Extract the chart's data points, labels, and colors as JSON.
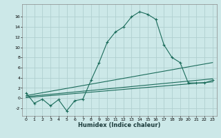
{
  "xlabel": "Humidex (Indice chaleur)",
  "bg_color": "#cce8e8",
  "grid_color": "#b0d0d0",
  "line_color": "#1a6b5a",
  "xlim": [
    -0.5,
    23.5
  ],
  "ylim": [
    -3.5,
    18.5
  ],
  "yticks": [
    -2,
    0,
    2,
    4,
    6,
    8,
    10,
    12,
    14,
    16
  ],
  "xticks": [
    0,
    1,
    2,
    3,
    4,
    5,
    6,
    7,
    8,
    9,
    10,
    11,
    12,
    13,
    14,
    15,
    16,
    17,
    18,
    19,
    20,
    21,
    22,
    23
  ],
  "series1_x": [
    0,
    1,
    2,
    3,
    4,
    5,
    6,
    7,
    8,
    9,
    10,
    11,
    12,
    13,
    14,
    15,
    16,
    17,
    18,
    19,
    20,
    21,
    22,
    23
  ],
  "series1_y": [
    1.0,
    -1.0,
    -0.2,
    -1.5,
    -0.3,
    -2.5,
    -0.5,
    -0.2,
    3.5,
    7.0,
    11.0,
    13.0,
    14.0,
    16.0,
    17.0,
    16.5,
    15.5,
    10.5,
    8.0,
    7.0,
    3.0,
    3.0,
    3.0,
    3.5
  ],
  "series2_x": [
    0,
    23
  ],
  "series2_y": [
    0.5,
    7.0
  ],
  "series3_x": [
    0,
    23
  ],
  "series3_y": [
    0.3,
    3.8
  ],
  "series4_x": [
    0,
    23
  ],
  "series4_y": [
    0.1,
    3.2
  ]
}
